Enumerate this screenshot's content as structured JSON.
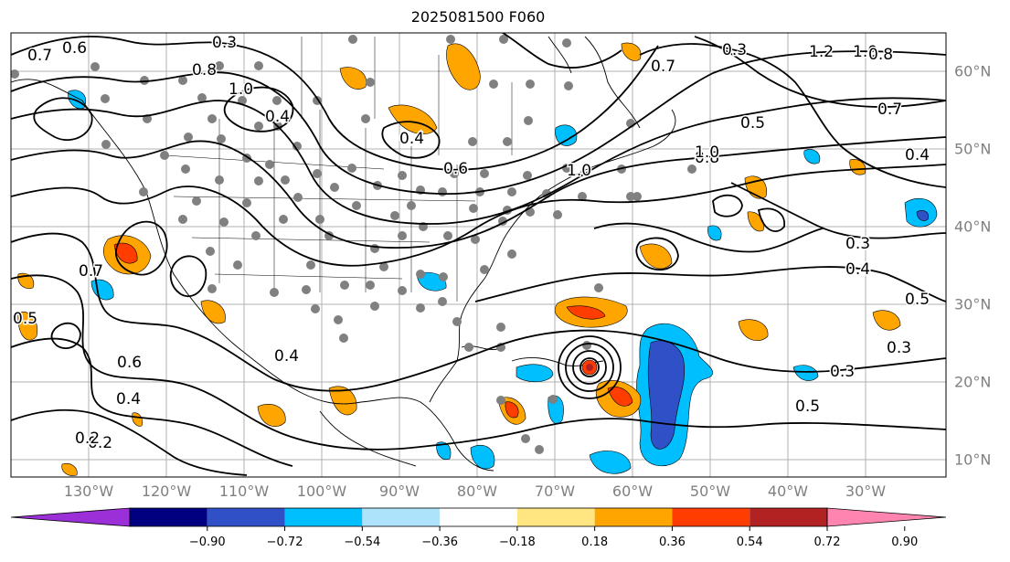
{
  "title": "2025081500 F060",
  "longitude_labels": [
    "130°W",
    "120°W",
    "110°W",
    "100°W",
    "90°W",
    "80°W",
    "70°W",
    "60°W",
    "50°W",
    "40°W",
    "30°W"
  ],
  "latitude_labels": [
    "60°N",
    "50°N",
    "40°N",
    "30°N",
    "20°N",
    "10°N"
  ],
  "colorbar": {
    "colors": [
      "#9b30d9",
      "#000080",
      "#3050c8",
      "#00bfff",
      "#ade3fb",
      "#ffffff",
      "#ffe680",
      "#ffa500",
      "#ff3d00",
      "#b22222",
      "#ff85b0"
    ],
    "tick_labels": [
      "−0.90",
      "−0.72",
      "−0.54",
      "−0.36",
      "−0.18",
      "0.18",
      "0.36",
      "0.54",
      "0.72",
      "0.90"
    ]
  },
  "contour_labels": [
    "0.7",
    "0.6",
    "0.3",
    "0.8",
    "1.0",
    "0.4",
    "0.4",
    "0.7",
    "0.6",
    "1.0",
    "0.8",
    "0.5",
    "0.7",
    "0.4",
    "0.5",
    "0.3",
    "0.3",
    "0.4",
    "0.2",
    "0.6",
    "0.4",
    "0.2",
    "0.5",
    "0.3",
    "0.5",
    "1.2",
    "1.0",
    "0.8",
    "0.3",
    "0.4",
    "0.7",
    "1.0"
  ]
}
